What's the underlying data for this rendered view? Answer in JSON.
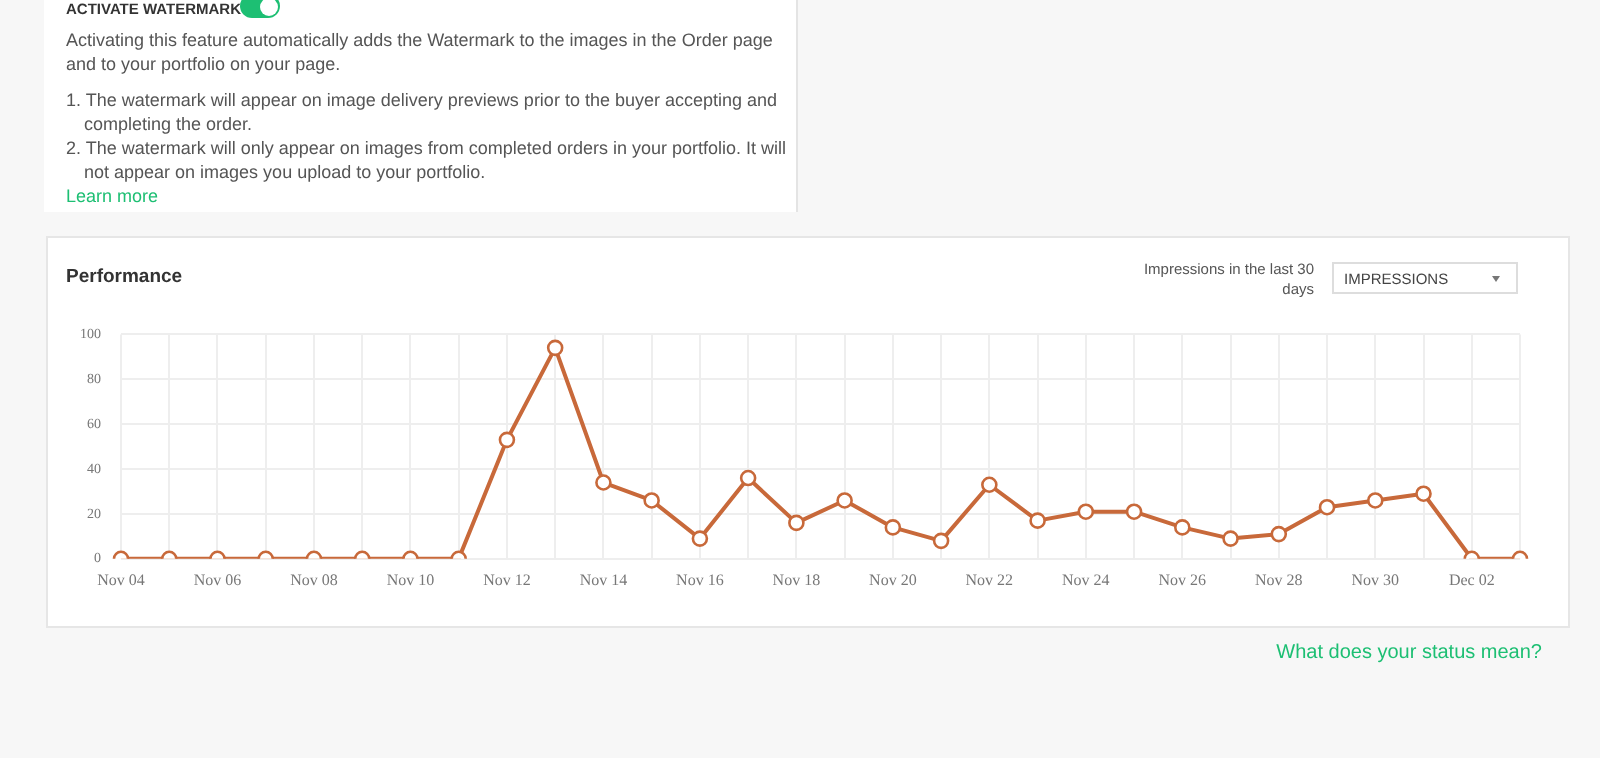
{
  "chart_data": {
    "type": "line",
    "title": "Performance",
    "categories": [
      "Nov 04",
      null,
      "Nov 06",
      null,
      "Nov 08",
      null,
      "Nov 10",
      null,
      "Nov 12",
      null,
      "Nov 14",
      null,
      "Nov 16",
      null,
      "Nov 18",
      null,
      "Nov 20",
      null,
      "Nov 22",
      null,
      "Nov 24",
      null,
      "Nov 26",
      null,
      "Nov 28",
      null,
      "Nov 30",
      null,
      "Dec 02",
      null
    ],
    "series": [
      {
        "color": "#c8693a",
        "values": [
          0,
          0,
          0,
          0,
          0,
          0,
          0,
          0,
          53,
          94,
          34,
          26,
          9,
          36,
          16,
          26,
          14,
          8,
          33,
          17,
          21,
          21,
          14,
          9,
          11,
          23,
          26,
          29,
          0,
          0
        ]
      }
    ],
    "ylim": [
      0,
      100
    ],
    "yticks": [
      0,
      20,
      40,
      60,
      80,
      100
    ],
    "grid": true,
    "legend": false,
    "marker": "circle",
    "line_style": "solid",
    "annotations": [
      "ACTIVATE WATERMARK",
      "Activating this feature automatically adds the Watermark to the images in the Order page and to your portfolio on your page.",
      "1. The watermark will appear on image delivery previews prior to the buyer accepting and completing the order.",
      "2. The watermark will only appear on images from completed orders in your portfolio. It will not appear on images you upload to your portfolio.",
      "Learn more",
      "Impressions in the last 30 days",
      "IMPRESSIONS",
      "What does your status mean?"
    ]
  }
}
